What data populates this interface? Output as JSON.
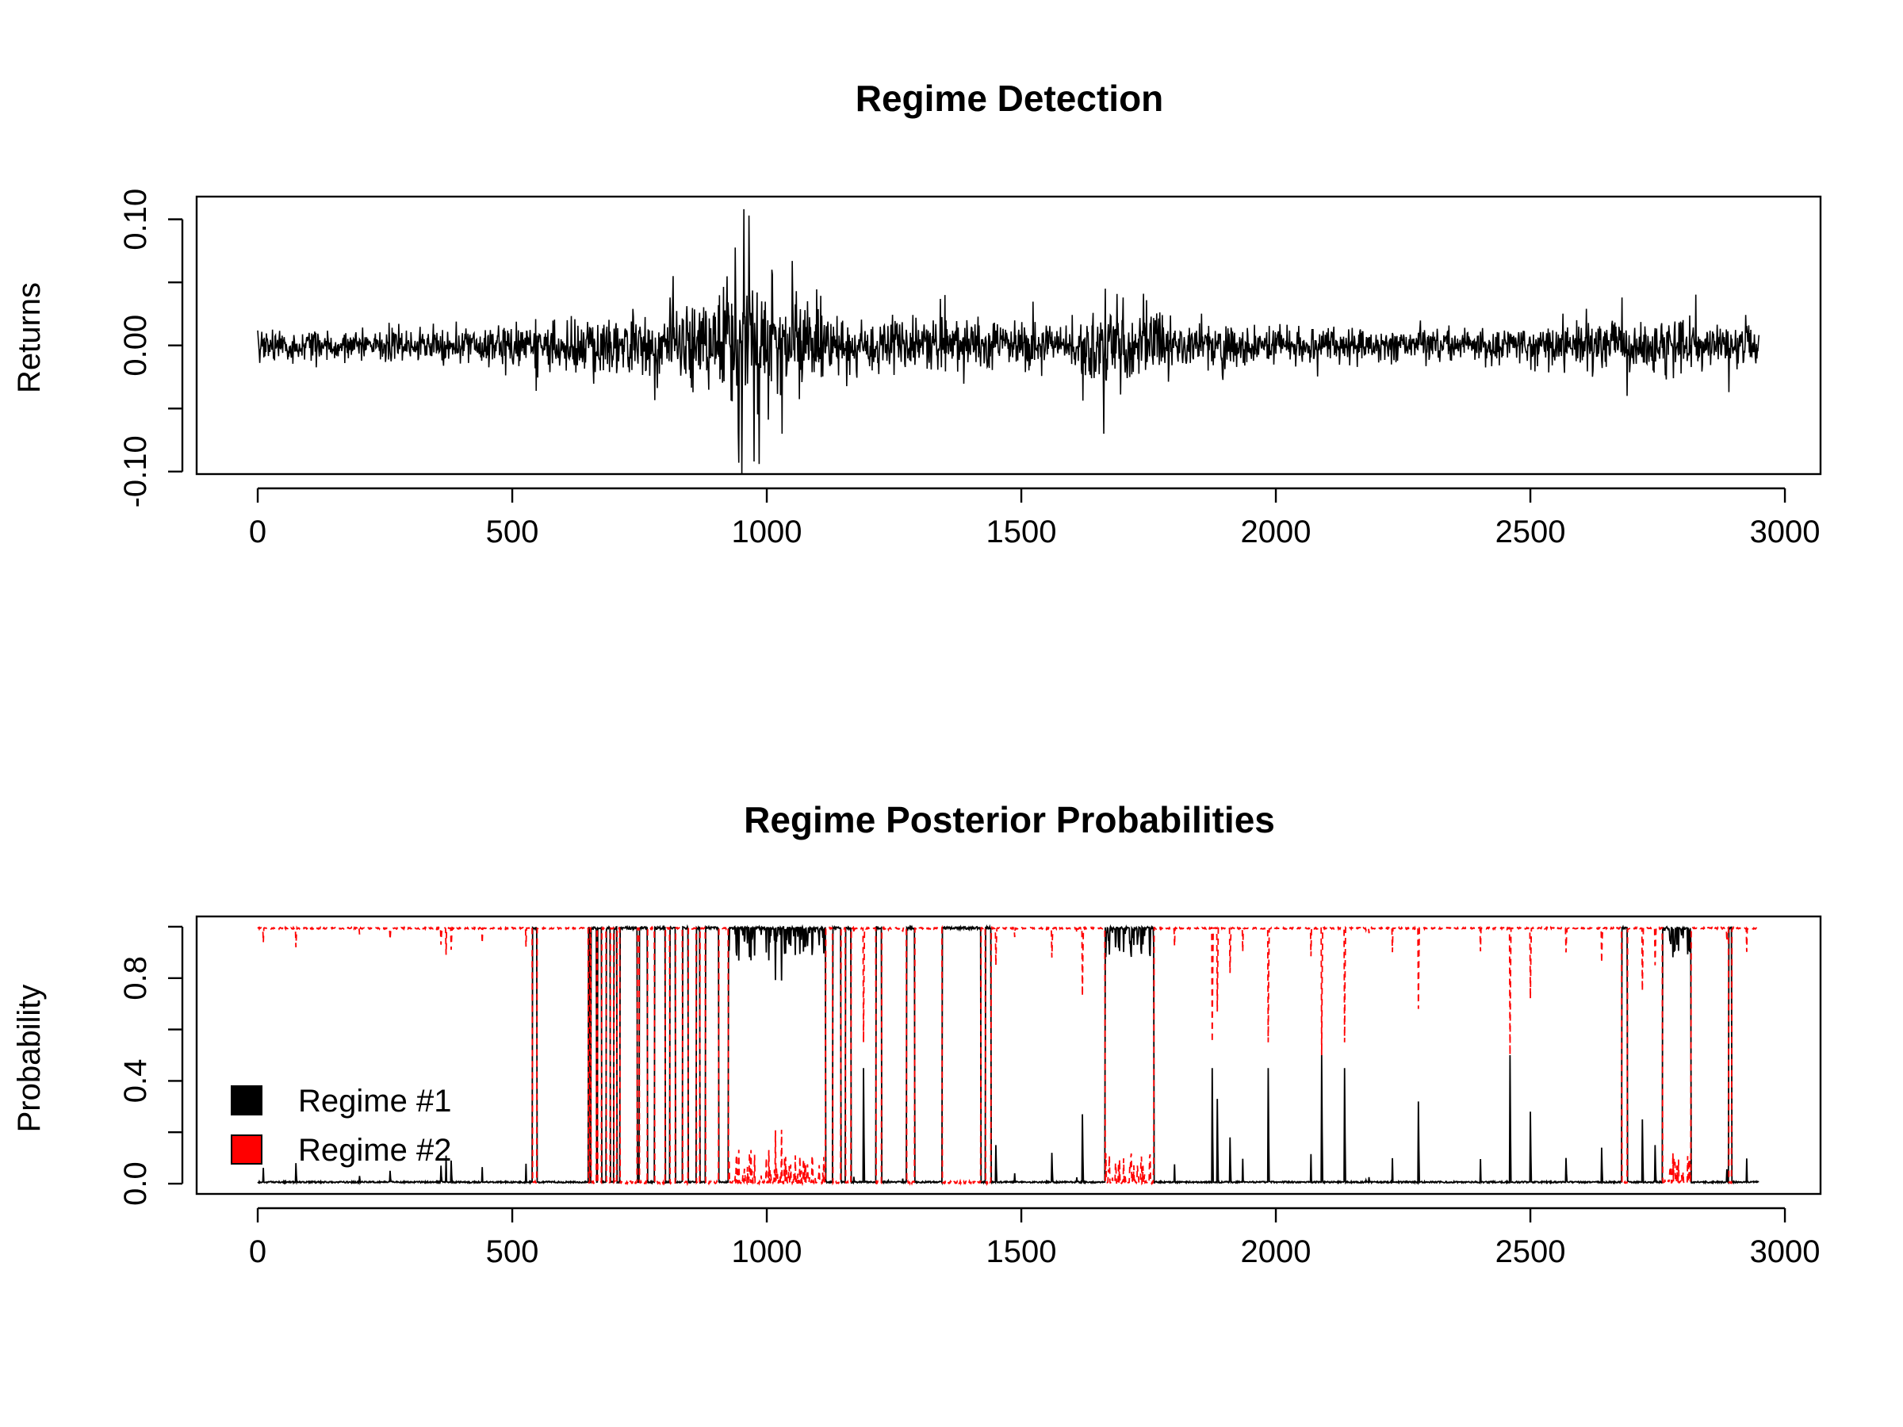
{
  "chart_data": [
    {
      "type": "line",
      "title": "Regime Detection",
      "xlabel": "",
      "ylabel": "Returns",
      "xlim": [
        -120,
        3070
      ],
      "ylim": [
        -0.102,
        0.118
      ],
      "x_ticks": [
        0,
        500,
        1000,
        1500,
        2000,
        2500,
        3000
      ],
      "y_ticks": [
        -0.1,
        -0.05,
        0.0,
        0.05,
        0.1
      ],
      "y_tick_labels": [
        "-0.10",
        "",
        "0.00",
        "",
        "0.10"
      ],
      "grid": false,
      "line_color": "#000000",
      "series": [
        {
          "points": 2950,
          "base_sd": 0.006,
          "volatility_profile": [
            [
              0,
              1.0
            ],
            [
              400,
              1.1
            ],
            [
              640,
              1.8
            ],
            [
              820,
              2.4
            ],
            [
              900,
              3.4
            ],
            [
              950,
              5.5
            ],
            [
              1000,
              4.2
            ],
            [
              1060,
              3.0
            ],
            [
              1120,
              1.9
            ],
            [
              1300,
              1.6
            ],
            [
              1400,
              1.9
            ],
            [
              1500,
              1.5
            ],
            [
              1600,
              1.5
            ],
            [
              1660,
              3.2
            ],
            [
              1740,
              2.3
            ],
            [
              1800,
              1.5
            ],
            [
              2000,
              1.2
            ],
            [
              2400,
              1.0
            ],
            [
              2650,
              1.6
            ],
            [
              2750,
              1.9
            ],
            [
              2850,
              1.6
            ],
            [
              2950,
              1.4
            ]
          ],
          "spikes": [
            [
              547,
              -0.036
            ],
            [
              810,
              0.038
            ],
            [
              945,
              -0.093
            ],
            [
              955,
              0.108
            ],
            [
              965,
              0.103
            ],
            [
              975,
              -0.092
            ],
            [
              985,
              -0.094
            ],
            [
              1010,
              0.06
            ],
            [
              1030,
              -0.07
            ],
            [
              1050,
              0.067
            ],
            [
              1080,
              0.035
            ],
            [
              1350,
              0.04
            ],
            [
              1662,
              -0.07
            ],
            [
              1665,
              0.045
            ],
            [
              1700,
              0.038
            ],
            [
              1740,
              0.041
            ],
            [
              2680,
              0.038
            ],
            [
              2690,
              -0.04
            ],
            [
              2890,
              -0.037
            ]
          ]
        }
      ]
    },
    {
      "type": "line",
      "title": "Regime Posterior Probabilities",
      "xlabel": "",
      "ylabel": "Probability",
      "xlim": [
        -120,
        3070
      ],
      "ylim": [
        -0.04,
        1.04
      ],
      "x_ticks": [
        0,
        500,
        1000,
        1500,
        2000,
        2500,
        3000
      ],
      "y_ticks": [
        0.0,
        0.2,
        0.4,
        0.6,
        0.8,
        1.0
      ],
      "y_tick_labels": [
        "0.0",
        "",
        "0.4",
        "",
        "0.8",
        ""
      ],
      "grid": false,
      "legend": {
        "placement": "bottom-left"
      },
      "series": [
        {
          "name": "Regime #1",
          "color": "#000000",
          "line_style": "solid"
        },
        {
          "name": "Regime #2",
          "color": "#ff0000",
          "line_style": "dashed"
        }
      ],
      "regime1_high_intervals": [
        [
          540,
          548
        ],
        [
          650,
          652
        ],
        [
          655,
          665
        ],
        [
          668,
          675
        ],
        [
          685,
          692
        ],
        [
          700,
          705
        ],
        [
          712,
          745
        ],
        [
          750,
          765
        ],
        [
          780,
          800
        ],
        [
          810,
          820
        ],
        [
          835,
          845
        ],
        [
          862,
          868
        ],
        [
          880,
          905
        ],
        [
          925,
          1115
        ],
        [
          1130,
          1145
        ],
        [
          1155,
          1165
        ],
        [
          1215,
          1225
        ],
        [
          1275,
          1290
        ],
        [
          1345,
          1420
        ],
        [
          1430,
          1440
        ],
        [
          1665,
          1760
        ],
        [
          2680,
          2690
        ],
        [
          2760,
          2815
        ],
        [
          2890,
          2895
        ]
      ],
      "regime1_spikes": [
        [
          75,
          0.08
        ],
        [
          200,
          0.03
        ],
        [
          260,
          0.05
        ],
        [
          360,
          0.07
        ],
        [
          380,
          0.09
        ],
        [
          1190,
          0.45
        ],
        [
          1450,
          0.15
        ],
        [
          1560,
          0.12
        ],
        [
          1620,
          0.27
        ],
        [
          1875,
          0.45
        ],
        [
          1885,
          0.33
        ],
        [
          1910,
          0.18
        ],
        [
          1985,
          0.45
        ],
        [
          2090,
          0.5
        ],
        [
          2135,
          0.45
        ],
        [
          2280,
          0.32
        ],
        [
          2460,
          0.5
        ],
        [
          2500,
          0.28
        ],
        [
          2570,
          0.1
        ],
        [
          2640,
          0.14
        ],
        [
          2720,
          0.25
        ],
        [
          2745,
          0.15
        ],
        [
          2950,
          0.25
        ]
      ],
      "noise_intervals": [
        [
          925,
          1115
        ],
        [
          1665,
          1760
        ],
        [
          2760,
          2815
        ]
      ]
    }
  ]
}
